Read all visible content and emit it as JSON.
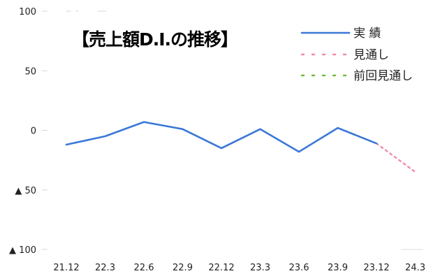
{
  "chart_data": {
    "type": "line",
    "title": "【売上額D.I.の推移】",
    "categories": [
      "21.12",
      "22.3",
      "22.6",
      "22.9",
      "22.12",
      "23.3",
      "23.6",
      "23.9",
      "23.12",
      "24.3"
    ],
    "y_ticks": [
      "100",
      "50",
      "0",
      "▲ 50",
      "▲ 100"
    ],
    "ylim": [
      -100,
      100
    ],
    "grid": false,
    "legend_position": "top-right",
    "series": [
      {
        "name": "実 績",
        "color": "#3a78d8",
        "style": "solid",
        "x": [
          "21.12",
          "22.3",
          "22.6",
          "22.9",
          "22.12",
          "23.3",
          "23.6",
          "23.9",
          "23.12"
        ],
        "values": [
          -12,
          -5,
          7,
          1,
          -15,
          1,
          -18,
          2,
          -11
        ]
      },
      {
        "name": "見通し",
        "color": "#f08aa4",
        "style": "dotted",
        "x": [
          "23.12",
          "24.3"
        ],
        "values": [
          -11,
          -35
        ]
      },
      {
        "name": "前回見通し",
        "color": "#6dbb3a",
        "style": "dotted",
        "x": [
          "23.9",
          "23.12"
        ],
        "values": [
          2,
          -11
        ]
      }
    ]
  }
}
